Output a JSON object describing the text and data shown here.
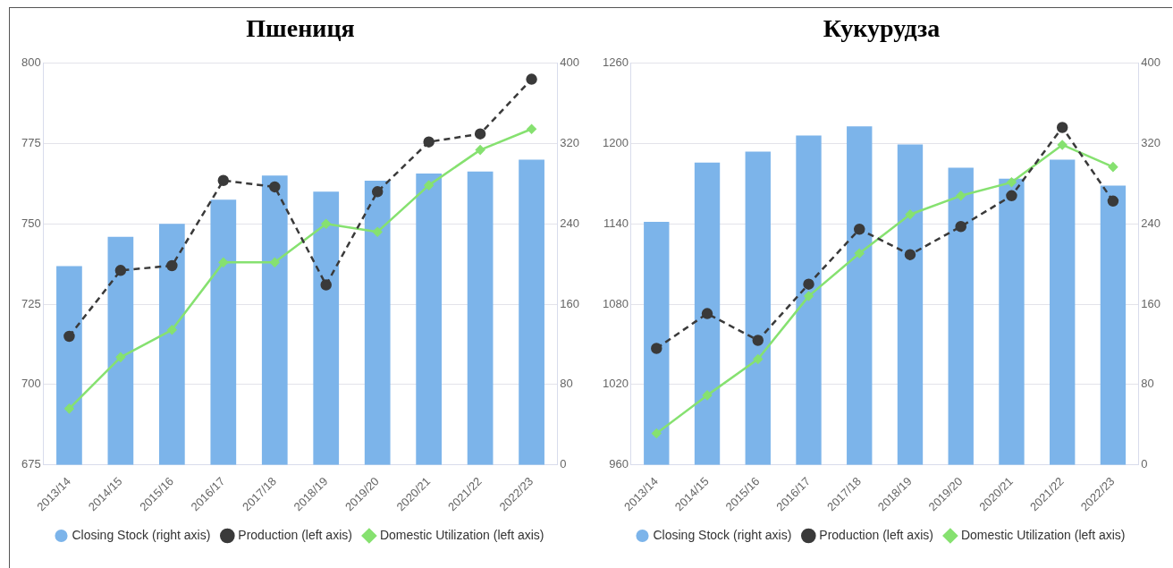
{
  "chart_data": [
    {
      "type": "bar",
      "title": "Пшениця",
      "categories": [
        "2013/14",
        "2014/15",
        "2015/16",
        "2016/17",
        "2017/18",
        "2018/19",
        "2019/20",
        "2020/21",
        "2021/22",
        "2022/23"
      ],
      "series": [
        {
          "name": "Closing Stock (right axis)",
          "axis": "y2",
          "color": "#7cb4ea",
          "values": [
            198,
            227,
            240,
            264,
            288,
            272,
            283,
            290,
            292,
            304
          ]
        },
        {
          "name": "Production (left axis)",
          "type": "line",
          "color": "#3a3a3a",
          "marker": "circle",
          "line_style": "dashed",
          "values": [
            715,
            735.5,
            737,
            763.5,
            761.5,
            731,
            760,
            775.5,
            778,
            795
          ]
        },
        {
          "name": "Domestic Utilization (left axis)",
          "type": "line",
          "color": "#86e170",
          "marker": "diamond",
          "line_style": "solid",
          "values": [
            692.5,
            708.5,
            717,
            738,
            738,
            750,
            747.5,
            762,
            773,
            779.5
          ]
        }
      ],
      "ylim": [
        675,
        800
      ],
      "yticks": [
        675,
        700,
        725,
        750,
        775,
        800
      ],
      "y2lim": [
        0,
        400
      ],
      "y2ticks": [
        0,
        80,
        160,
        240,
        320,
        400
      ],
      "grid": "y",
      "legend": "bottom"
    },
    {
      "type": "bar",
      "title": "Кукурудза",
      "categories": [
        "2013/14",
        "2014/15",
        "2015/16",
        "2016/17",
        "2017/18",
        "2018/19",
        "2019/20",
        "2020/21",
        "2021/22",
        "2022/23"
      ],
      "series": [
        {
          "name": "Closing Stock (right axis)",
          "axis": "y2",
          "color": "#7cb4ea",
          "values": [
            242,
            301,
            312,
            328,
            337,
            319,
            296,
            285,
            304,
            278
          ]
        },
        {
          "name": "Production (left axis)",
          "type": "line",
          "color": "#3a3a3a",
          "marker": "circle",
          "line_style": "dashed",
          "values": [
            1047,
            1073,
            1053,
            1095,
            1136,
            1117,
            1138,
            1161,
            1212,
            1157
          ]
        },
        {
          "name": "Domestic Utilization (left axis)",
          "type": "line",
          "color": "#86e170",
          "marker": "diamond",
          "line_style": "solid",
          "values": [
            983.5,
            1012,
            1039,
            1086,
            1118,
            1147,
            1161,
            1171,
            1199,
            1182.5
          ]
        }
      ],
      "ylim": [
        960,
        1260
      ],
      "yticks": [
        960,
        1020,
        1080,
        1140,
        1200,
        1260
      ],
      "y2lim": [
        0,
        400
      ],
      "y2ticks": [
        0,
        80,
        160,
        240,
        320,
        400
      ],
      "grid": "y",
      "legend": "bottom"
    }
  ]
}
